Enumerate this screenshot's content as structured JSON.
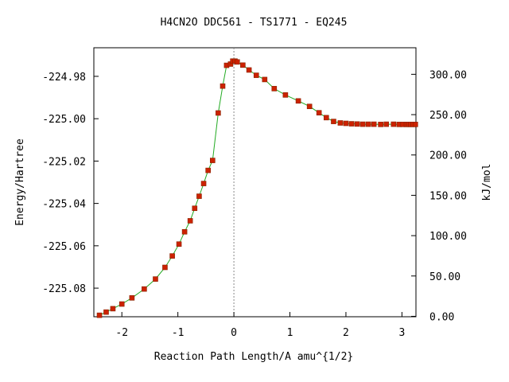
{
  "chart_data": {
    "type": "line",
    "title": "H4CN2O   DDC561 - TS1771 - EQ245",
    "xlabel": "Reaction Path Length/A amu^{1/2}",
    "ylabel": "Energy/Hartree",
    "ylabel_right": "kJ/mol",
    "xlim": [
      -2.5,
      3.25
    ],
    "ylim": [
      -225.0935,
      -224.9665
    ],
    "xticks": [
      -2,
      -1,
      0,
      1,
      2,
      3
    ],
    "xtick_labels": [
      "-2",
      "-1",
      "0",
      "1",
      "2",
      "3"
    ],
    "yticks": [
      -224.98,
      -225.0,
      -225.02,
      -225.04,
      -225.06,
      -225.08
    ],
    "ytick_labels": [
      "-224.98",
      "-225.00",
      "-225.02",
      "-225.04",
      "-225.06",
      "-225.08"
    ],
    "right_ticks": [
      0,
      50,
      100,
      150,
      200,
      250,
      300
    ],
    "right_tick_labels": [
      "0.00",
      "50.00",
      "100.00",
      "150.00",
      "200.00",
      "250.00",
      "300.00"
    ],
    "right_axis_zero": -225.0933,
    "hartree_to_kjmol": 2625.5,
    "ts_marker_x": 0,
    "grid": false,
    "colors": {
      "line": "#22aa22",
      "marker": "#cc2200",
      "marker_edge": "#882200",
      "ts_line": "#888888",
      "axis": "#000000"
    },
    "series": [
      {
        "x": [
          -2.4,
          -2.28,
          -2.16,
          -2.0,
          -1.82,
          -1.6,
          -1.4,
          -1.23,
          -1.1,
          -0.98,
          -0.88,
          -0.78,
          -0.7,
          -0.62,
          -0.54,
          -0.46,
          -0.38,
          -0.28,
          -0.2,
          -0.13,
          -0.06,
          -0.02,
          0.02,
          0.06,
          0.16,
          0.27,
          0.4,
          0.55,
          0.72,
          0.92,
          1.15,
          1.35,
          1.52,
          1.65,
          1.78,
          1.9,
          2.0,
          2.1,
          2.2,
          2.3,
          2.4,
          2.5,
          2.62,
          2.72,
          2.85,
          2.95,
          3.02,
          3.08,
          3.12,
          3.16,
          3.2,
          3.24
        ],
        "y": [
          -225.0928,
          -225.0913,
          -225.0897,
          -225.0875,
          -225.0846,
          -225.0804,
          -225.0757,
          -225.0702,
          -225.0648,
          -225.0592,
          -225.0534,
          -225.0482,
          -225.0423,
          -225.0366,
          -225.0306,
          -225.0244,
          -225.0197,
          -224.9973,
          -224.9846,
          -224.9748,
          -224.9742,
          -224.9728,
          -224.9728,
          -224.9732,
          -224.9747,
          -224.977,
          -224.9795,
          -224.9815,
          -224.9858,
          -224.9888,
          -224.9916,
          -224.9942,
          -224.9972,
          -224.9995,
          -225.0013,
          -225.002,
          -225.0022,
          -225.0024,
          -225.0025,
          -225.0026,
          -225.0026,
          -225.0026,
          -225.0027,
          -225.0026,
          -225.0026,
          -225.0027,
          -225.0027,
          -225.0027,
          -225.0027,
          -225.0027,
          -225.0027,
          -225.0027
        ]
      }
    ]
  }
}
